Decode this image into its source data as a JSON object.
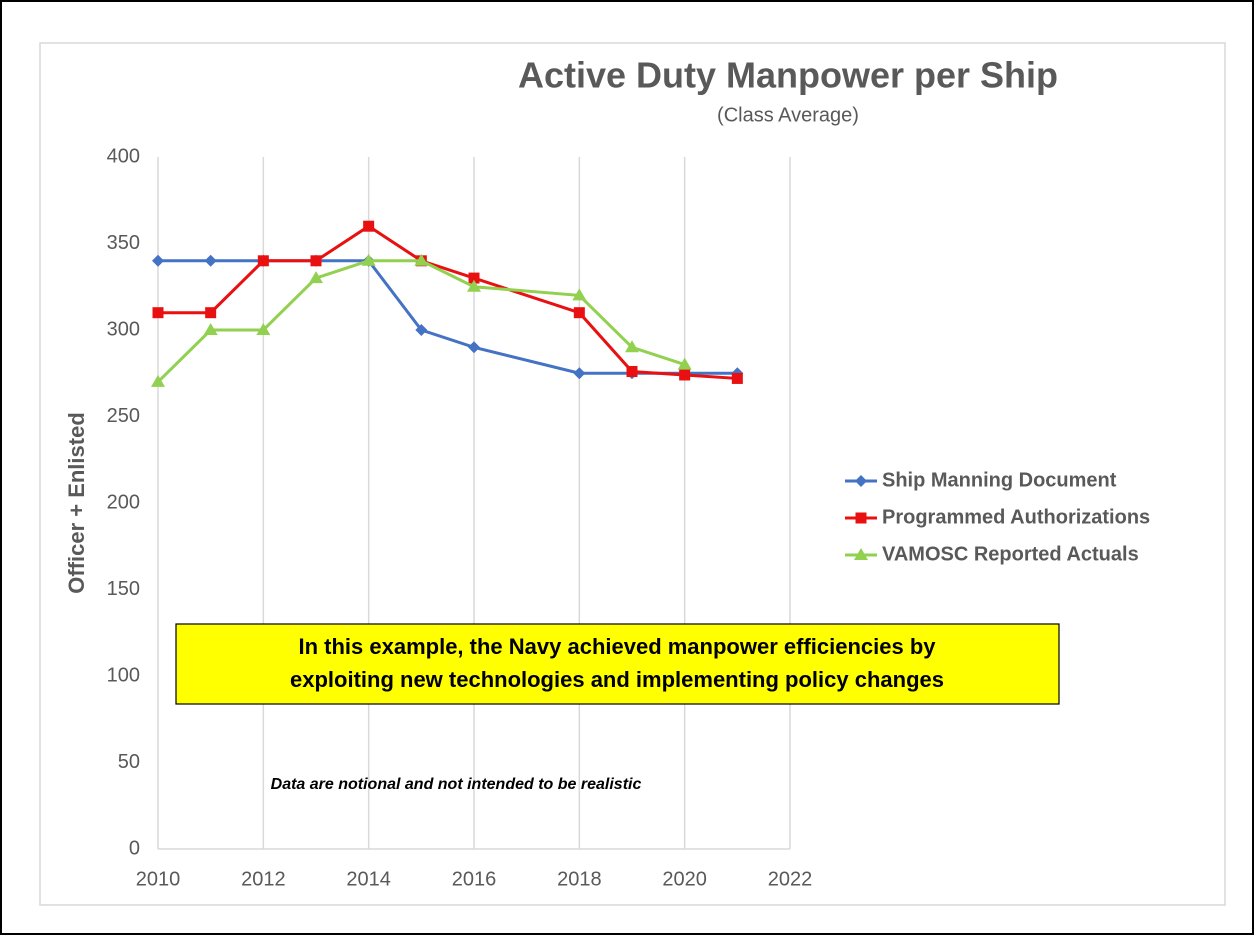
{
  "chart_data": {
    "type": "line",
    "title": "Active Duty Manpower per Ship",
    "subtitle": "(Class Average)",
    "y_label": "Officer + Enlisted",
    "x": [
      2010,
      2011,
      2012,
      2013,
      2014,
      2015,
      2016,
      2018,
      2019,
      2020,
      2021
    ],
    "series": [
      {
        "name": "Ship Manning Document",
        "color": "#4472c4",
        "marker": "diamond",
        "values": [
          340,
          340,
          340,
          340,
          340,
          300,
          290,
          275,
          275,
          275,
          275
        ]
      },
      {
        "name": "Programmed Authorizations",
        "color": "#e81010",
        "marker": "square",
        "values": [
          310,
          310,
          340,
          340,
          360,
          340,
          330,
          310,
          276,
          274,
          272
        ]
      },
      {
        "name": "VAMOSC Reported Actuals",
        "color": "#92d050",
        "marker": "triangle",
        "values": [
          270,
          300,
          300,
          330,
          340,
          340,
          325,
          320,
          290,
          280,
          null
        ]
      }
    ],
    "xlim": [
      2010,
      2022
    ],
    "xticks": [
      2010,
      2012,
      2014,
      2016,
      2018,
      2020,
      2022
    ],
    "ylim": [
      0,
      400
    ],
    "yticks": [
      0,
      50,
      100,
      150,
      200,
      250,
      300,
      350,
      400
    ],
    "xgrid": true,
    "ygrid": false,
    "legend": "right",
    "annotation": [
      "In this example, the Navy achieved manpower efficiencies by",
      "exploiting new technologies and implementing policy changes"
    ],
    "note": "Data are notional and not intended to be realistic"
  }
}
